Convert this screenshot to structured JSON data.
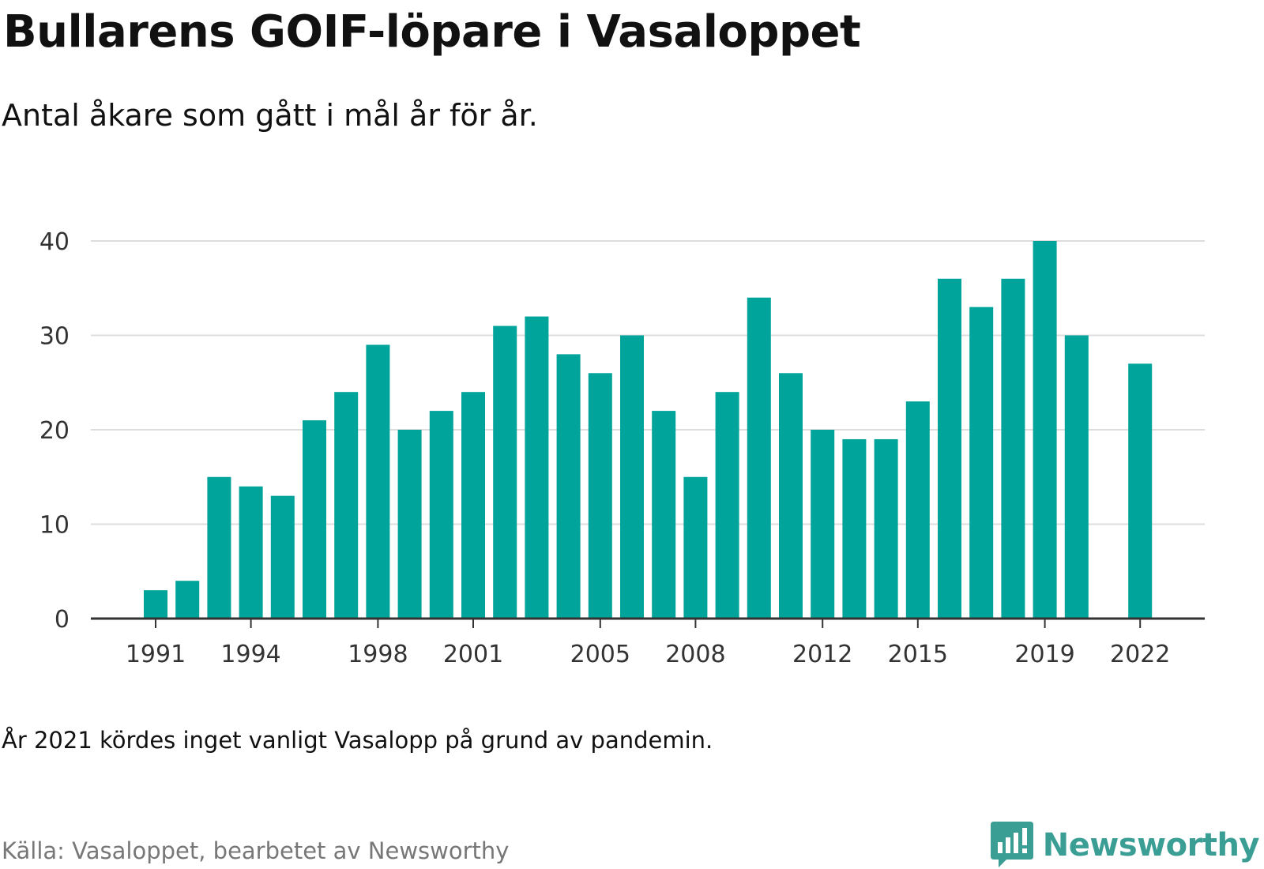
{
  "header": {
    "title": "Bullarens GOIF-löpare i Vasaloppet",
    "subtitle": "Antal åkare som gått i mål år för år."
  },
  "footer": {
    "note": "År 2021 kördes inget vanligt Vasalopp på grund av pandemin.",
    "source": "Källa: Vasaloppet, bearbetet av Newsworthy",
    "brand": "Newsworthy",
    "brand_icon": "newsworthy-logo-icon"
  },
  "colors": {
    "bar": "#00a49a",
    "grid": "#dddddd",
    "axis": "#333333",
    "brand": "#3a9e95"
  },
  "chart_data": {
    "type": "bar",
    "categories": [
      "1991",
      "1992",
      "1993",
      "1994",
      "1995",
      "1996",
      "1997",
      "1998",
      "1999",
      "2000",
      "2001",
      "2002",
      "2003",
      "2004",
      "2005",
      "2006",
      "2007",
      "2008",
      "2009",
      "2010",
      "2011",
      "2012",
      "2013",
      "2014",
      "2015",
      "2016",
      "2017",
      "2018",
      "2019",
      "2020",
      "2021",
      "2022"
    ],
    "values": [
      3,
      4,
      15,
      14,
      13,
      21,
      24,
      29,
      20,
      22,
      24,
      31,
      32,
      28,
      26,
      30,
      22,
      15,
      24,
      34,
      26,
      20,
      19,
      19,
      23,
      36,
      33,
      36,
      40,
      30,
      null,
      27
    ],
    "x_tick_labels": [
      "1991",
      "1994",
      "1998",
      "2001",
      "2005",
      "2008",
      "2012",
      "2015",
      "2019",
      "2022"
    ],
    "y_ticks": [
      0,
      10,
      20,
      30,
      40
    ],
    "ylim": [
      0,
      40
    ],
    "grid": true,
    "legend": "none"
  }
}
